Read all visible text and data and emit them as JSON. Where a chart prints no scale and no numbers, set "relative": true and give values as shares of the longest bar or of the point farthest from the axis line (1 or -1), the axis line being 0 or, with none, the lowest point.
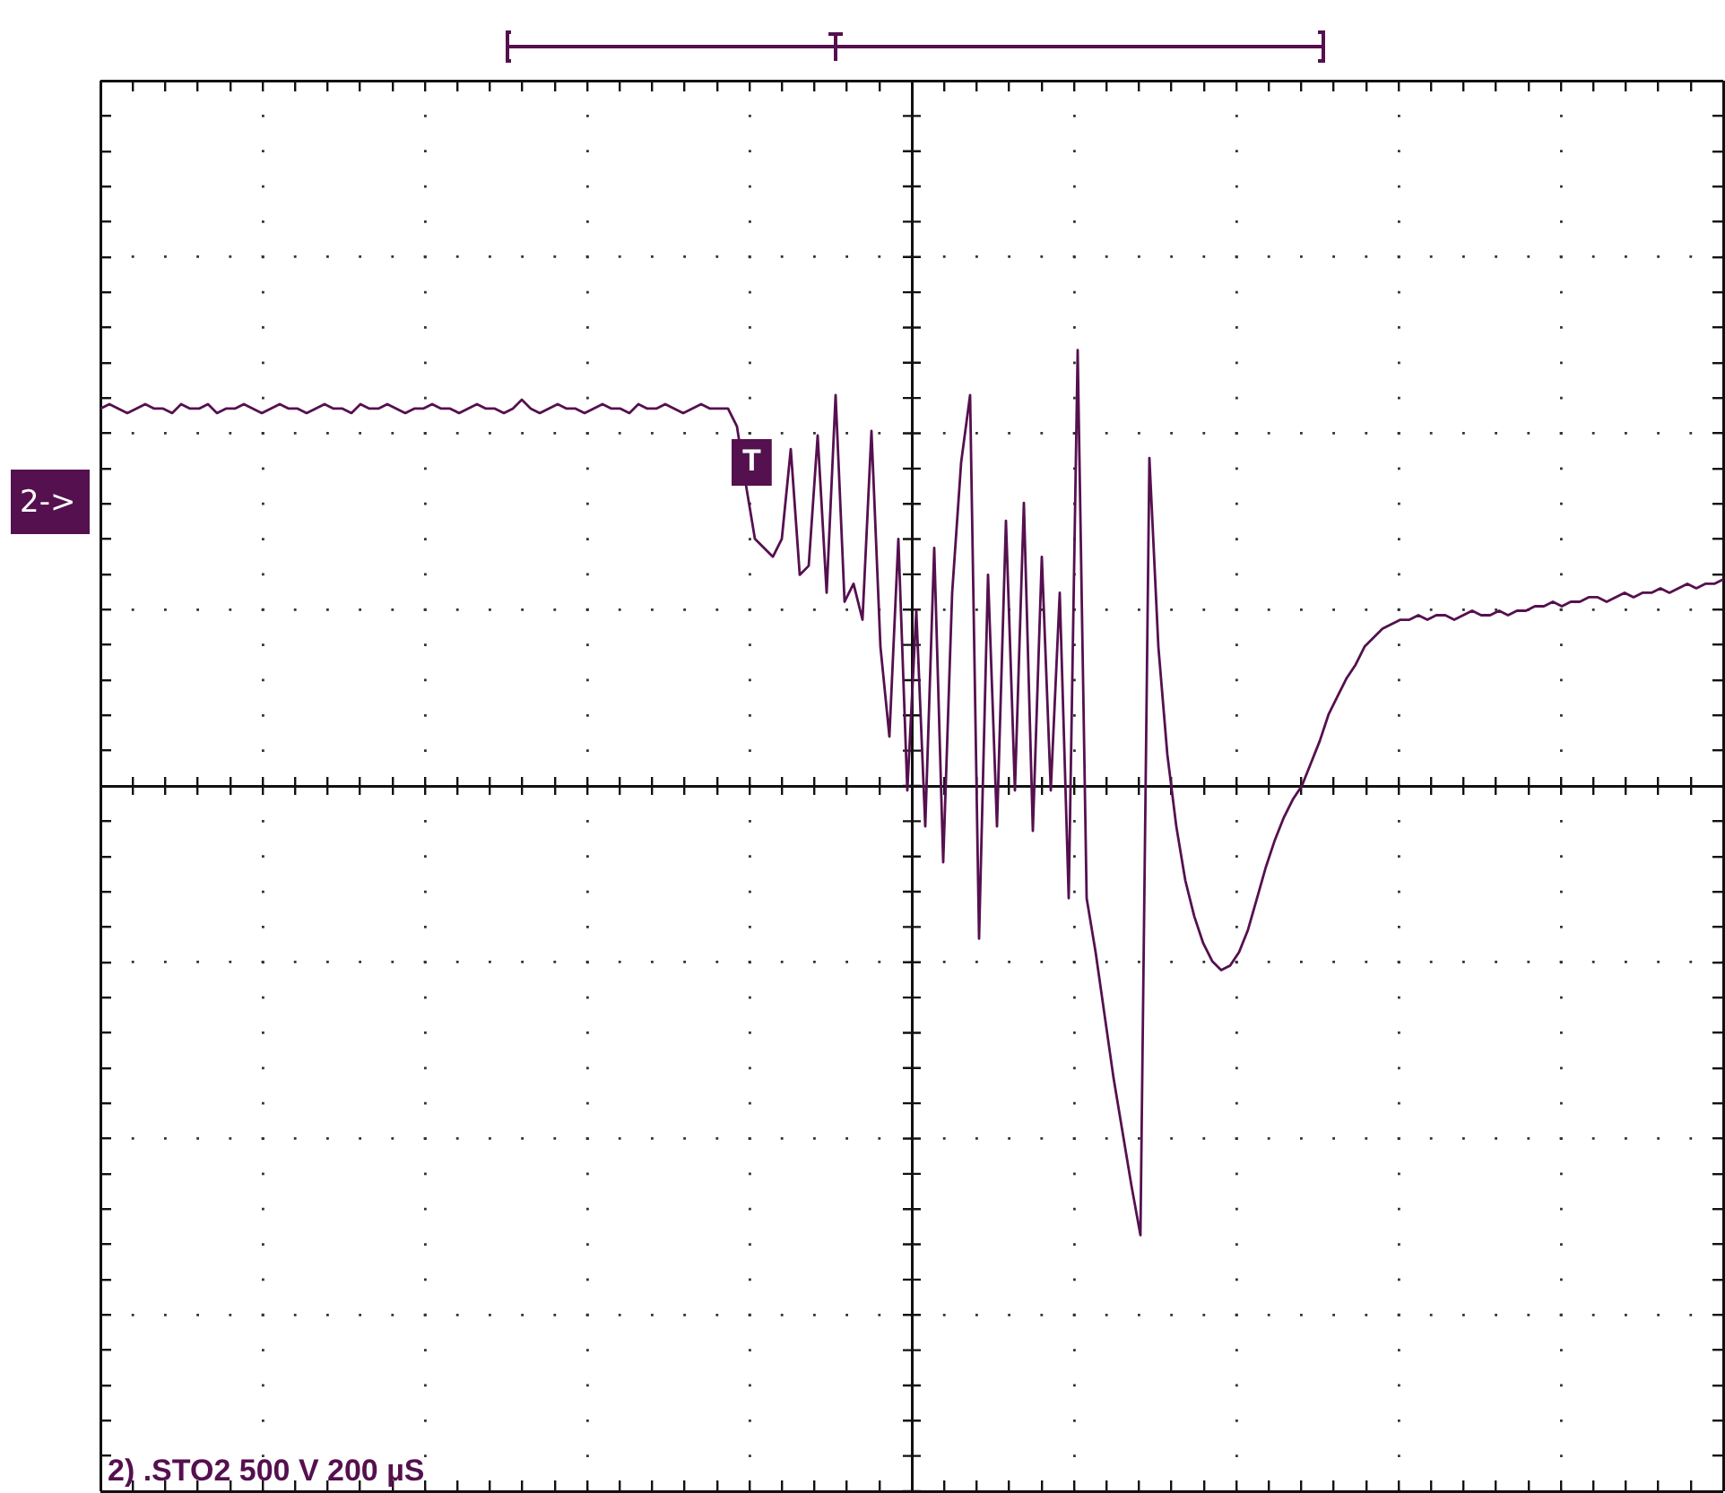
{
  "chart_data": {
    "type": "line",
    "relative": true,
    "tick_labels": false,
    "grid": true,
    "legend": false,
    "marker": "none",
    "line_style": "solid",
    "categories": [
      null,
      null,
      null,
      null,
      null,
      null,
      null,
      null,
      null,
      null,
      null,
      null,
      null,
      null,
      null,
      null,
      null,
      null,
      null,
      null,
      null,
      null,
      null,
      null,
      null,
      null,
      null,
      null,
      null,
      null,
      null,
      null,
      null,
      null,
      null,
      null,
      null,
      null,
      null,
      null,
      null,
      null,
      null,
      null,
      null,
      null,
      null,
      null,
      null,
      null,
      null,
      null,
      null,
      null,
      null,
      null,
      null,
      null,
      null,
      null,
      null,
      null,
      null,
      null,
      null,
      null,
      null,
      null,
      null,
      null,
      null,
      null,
      null,
      null,
      null,
      null,
      null,
      null,
      null,
      null,
      null,
      null,
      null,
      null,
      null,
      null,
      null,
      null,
      null,
      null,
      null,
      null,
      null,
      null,
      null,
      null,
      null,
      null,
      null,
      null,
      null,
      null,
      null,
      null,
      null,
      null,
      null,
      null,
      null,
      null,
      null,
      null,
      null,
      null,
      null,
      null,
      null,
      null,
      null,
      null,
      null,
      null,
      null,
      null,
      null,
      null,
      null,
      null,
      null,
      null,
      null,
      null,
      null,
      null,
      null,
      null,
      null,
      null,
      null,
      null,
      null,
      null,
      null,
      null,
      null,
      null,
      null,
      null,
      null,
      null,
      null,
      null,
      null,
      null,
      null,
      null,
      null,
      null,
      null,
      null,
      null,
      null,
      null,
      null,
      null,
      null,
      null,
      null,
      null,
      null,
      null,
      null,
      null,
      null,
      null,
      null,
      null,
      null,
      null,
      null,
      null,
      null
    ],
    "series": [
      {
        "color": "#55104f",
        "values": [
          0.84,
          0.85,
          0.84,
          0.83,
          0.84,
          0.85,
          0.84,
          0.84,
          0.83,
          0.85,
          0.84,
          0.84,
          0.85,
          0.83,
          0.84,
          0.84,
          0.85,
          0.84,
          0.83,
          0.84,
          0.85,
          0.84,
          0.84,
          0.83,
          0.84,
          0.85,
          0.84,
          0.84,
          0.83,
          0.85,
          0.84,
          0.84,
          0.85,
          0.84,
          0.83,
          0.84,
          0.84,
          0.85,
          0.84,
          0.84,
          0.83,
          0.84,
          0.85,
          0.84,
          0.84,
          0.83,
          0.84,
          0.86,
          0.84,
          0.83,
          0.84,
          0.85,
          0.84,
          0.84,
          0.83,
          0.84,
          0.85,
          0.84,
          0.84,
          0.83,
          0.85,
          0.84,
          0.84,
          0.85,
          0.84,
          0.83,
          0.84,
          0.85,
          0.84,
          0.84,
          0.84,
          0.8,
          0.67,
          0.55,
          0.53,
          0.51,
          0.55,
          0.75,
          0.47,
          0.49,
          0.78,
          0.43,
          0.87,
          0.41,
          0.45,
          0.37,
          0.79,
          0.31,
          0.11,
          0.55,
          -0.01,
          0.39,
          -0.09,
          0.53,
          -0.17,
          0.43,
          0.72,
          0.87,
          -0.34,
          0.47,
          -0.09,
          0.59,
          -0.01,
          0.63,
          -0.1,
          0.51,
          -0.01,
          0.43,
          -0.25,
          0.97,
          -0.25,
          -0.37,
          -0.51,
          -0.65,
          -0.77,
          -0.89,
          -1,
          0.73,
          0.31,
          0.07,
          -0.09,
          -0.21,
          -0.29,
          -0.35,
          -0.39,
          -0.41,
          -0.4,
          -0.37,
          -0.32,
          -0.25,
          -0.18,
          -0.12,
          -0.07,
          -0.03,
          0,
          0.05,
          0.1,
          0.16,
          0.2,
          0.24,
          0.27,
          0.31,
          0.33,
          0.35,
          0.36,
          0.37,
          0.37,
          0.38,
          0.37,
          0.38,
          0.38,
          0.37,
          0.38,
          0.39,
          0.38,
          0.38,
          0.39,
          0.38,
          0.39,
          0.39,
          0.4,
          0.4,
          0.41,
          0.4,
          0.41,
          0.41,
          0.42,
          0.42,
          0.41,
          0.42,
          0.43,
          0.42,
          0.43,
          0.43,
          0.44,
          0.43,
          0.44,
          0.45,
          0.44,
          0.45,
          0.45,
          0.46
        ]
      }
    ],
    "annotations": [
      "2) .STO2 500 V 200 µS",
      "2->",
      "T"
    ]
  }
}
